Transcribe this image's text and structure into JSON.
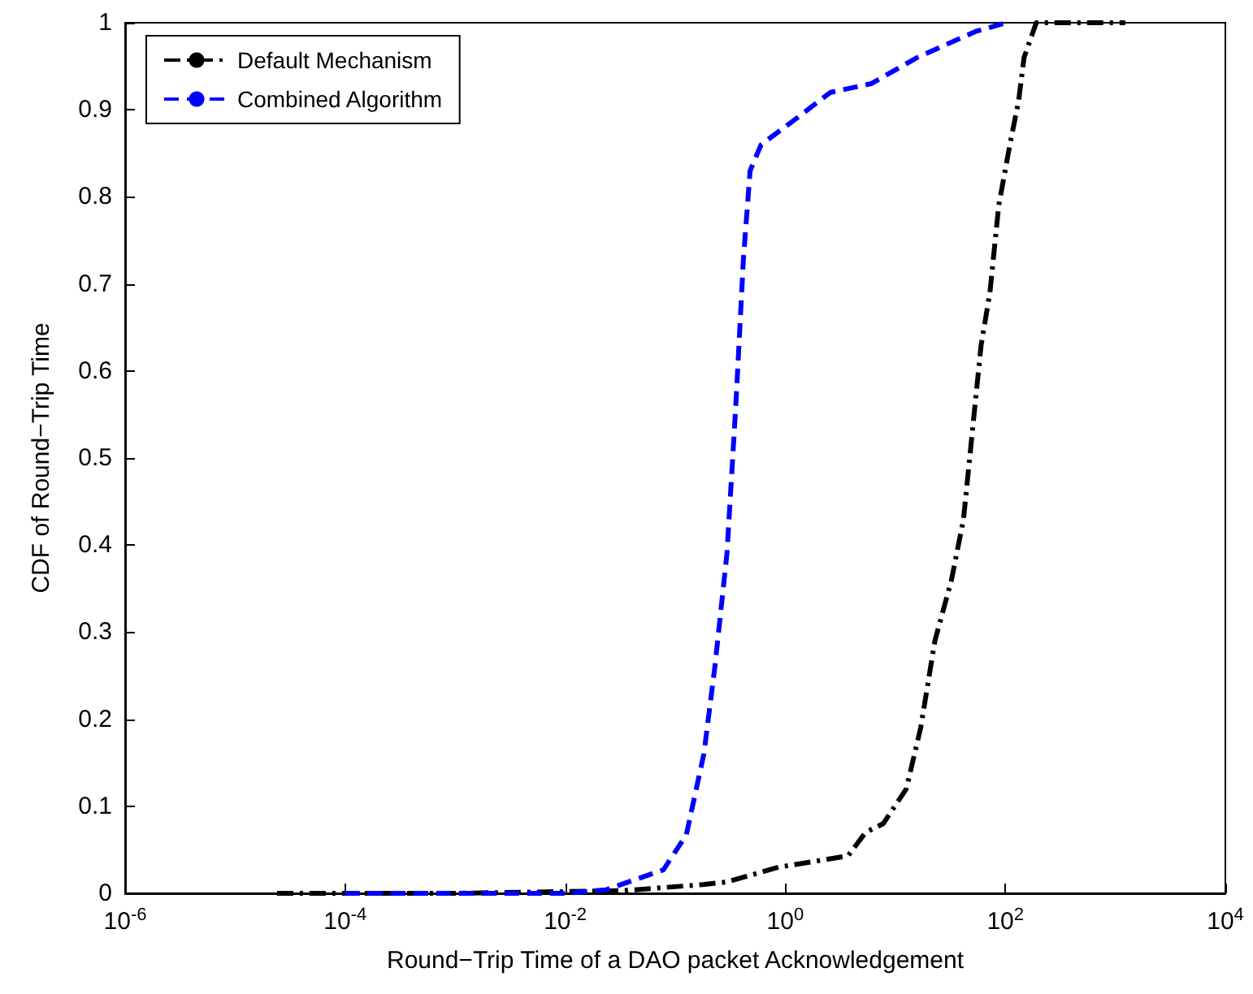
{
  "chart_data": {
    "type": "line",
    "xlabel": "Round−Trip Time of a DAO packet Acknowledgement",
    "ylabel": "CDF of Round−Trip Time",
    "log": "x",
    "xlim": [
      1e-06,
      10000
    ],
    "ylim": [
      0,
      1
    ],
    "xticks": [
      {
        "value": 1e-06,
        "label": "10$^{-6}$"
      },
      {
        "value": 0.0001,
        "label": "10$^{-4}$"
      },
      {
        "value": 0.01,
        "label": "10$^{-2}$"
      },
      {
        "value": 1,
        "label": "10$^{0}$"
      },
      {
        "value": 100,
        "label": "10$^{2}$"
      },
      {
        "value": 10000,
        "label": "10$^{4}$"
      }
    ],
    "yticks": [
      0,
      0.1,
      0.2,
      0.3,
      0.4,
      0.5,
      0.6,
      0.7,
      0.8,
      0.9,
      1
    ],
    "grid": false,
    "legend": "top left",
    "marker": "none",
    "series": [
      {
        "name": "Default Mechanism",
        "color": "#000000",
        "line_style": "dashdot",
        "x": [
          2.4e-05,
          0.001,
          0.033,
          0.178,
          0.295,
          0.871,
          3.72,
          5.37,
          7.76,
          12.6,
          17,
          22.9,
          32.4,
          41.7,
          50.1,
          60.3,
          72.4,
          87.1,
          110,
          132,
          148,
          191,
          1230
        ],
        "values": [
          0,
          0,
          0.003,
          0.01,
          0.013,
          0.03,
          0.043,
          0.07,
          0.08,
          0.12,
          0.19,
          0.29,
          0.36,
          0.43,
          0.53,
          0.63,
          0.69,
          0.79,
          0.86,
          0.91,
          0.96,
          1,
          1
        ]
      },
      {
        "name": "Combined Algorithm",
        "color": "#0000ff",
        "line_style": "dashed",
        "x": [
          0.0001,
          0.001,
          0.01,
          0.0234,
          0.078,
          0.126,
          0.182,
          0.229,
          0.295,
          0.355,
          0.417,
          0.479,
          0.603,
          1.26,
          2.57,
          6.03,
          15.8,
          53.7,
          102
        ],
        "values": [
          0,
          0,
          0,
          0.004,
          0.027,
          0.067,
          0.16,
          0.26,
          0.39,
          0.56,
          0.73,
          0.83,
          0.86,
          0.89,
          0.92,
          0.93,
          0.96,
          0.99,
          1
        ]
      }
    ]
  }
}
